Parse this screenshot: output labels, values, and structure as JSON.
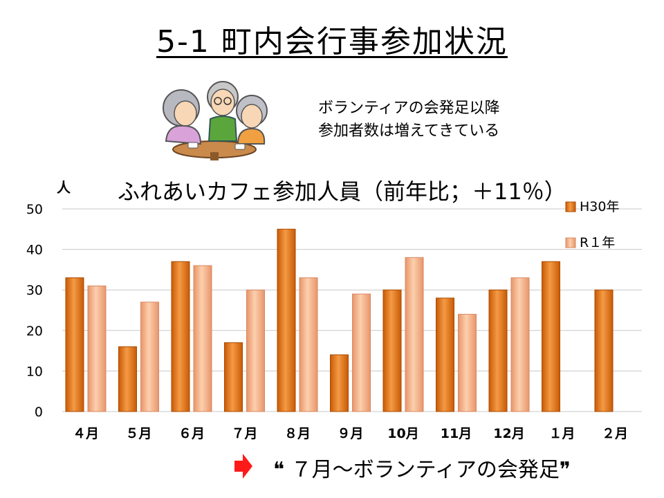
{
  "slide": {
    "title": "5-1 町内会行事参加状況",
    "note_line1": "ボランティアの会発足以降",
    "note_line2": "参加者数は増えてきている",
    "footer": "❝ ７月～ボランティアの会発足❞",
    "accent": "#e8720c"
  },
  "chart_data": {
    "type": "bar",
    "title": "ふれあいカフェ参加人員（前年比；＋11％）",
    "ylabel": "人",
    "categories": [
      "４月",
      "５月",
      "６月",
      "７月",
      "８月",
      "９月",
      "10月",
      "11月",
      "12月",
      "１月",
      "２月"
    ],
    "series": [
      {
        "name": "H30年",
        "values": [
          33,
          16,
          37,
          17,
          45,
          14,
          30,
          28,
          30,
          37,
          30
        ],
        "color": "#e8720c"
      },
      {
        "name": "R１年",
        "values": [
          31,
          27,
          36,
          30,
          33,
          29,
          38,
          24,
          33,
          null,
          null
        ],
        "color": "#f5b88a"
      }
    ],
    "ylim": [
      0,
      50
    ],
    "yticks": [
      0,
      10,
      20,
      30,
      40,
      50
    ],
    "grid": true,
    "legend": "right"
  }
}
